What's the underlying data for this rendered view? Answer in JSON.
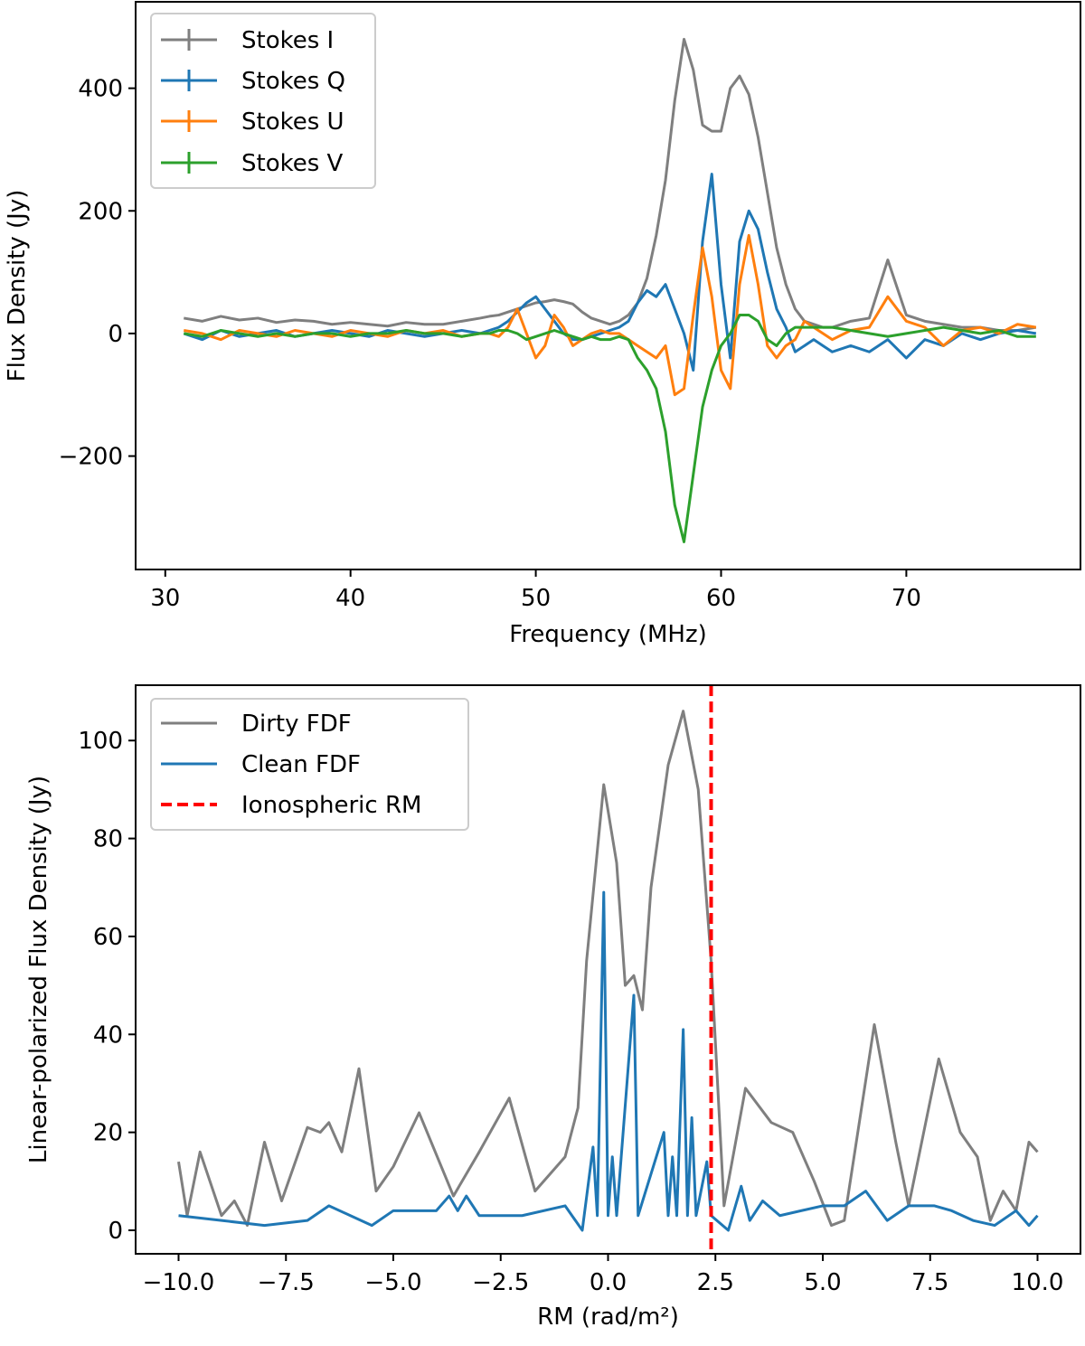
{
  "chart_data": [
    {
      "type": "line",
      "xlabel": "Frequency (MHz)",
      "ylabel": "Flux Density (Jy)",
      "xlim": [
        28.4,
        79.4
      ],
      "ylim": [
        -385,
        541
      ],
      "xticks": [
        30,
        40,
        50,
        60,
        70
      ],
      "yticks": [
        {
          "value": -200,
          "label": "−200"
        },
        0,
        200,
        400
      ],
      "legend": "upper left",
      "x": [
        31,
        32,
        33,
        34,
        35,
        36,
        37,
        38,
        39,
        40,
        41,
        42,
        43,
        44,
        45,
        46,
        47,
        47.5,
        48,
        48.5,
        49,
        49.5,
        50,
        50.5,
        51,
        51.5,
        52,
        52.5,
        53,
        53.5,
        54,
        54.5,
        55,
        55.5,
        56,
        56.5,
        57,
        57.5,
        58,
        58.5,
        59,
        59.5,
        60,
        60.5,
        61,
        61.5,
        62,
        62.5,
        63,
        63.5,
        64,
        64.5,
        65,
        65.5,
        66,
        67,
        68,
        69,
        70,
        71,
        72,
        73,
        74,
        75,
        76,
        77
      ],
      "series": [
        {
          "name": "Stokes I",
          "color": "#7f7f7f",
          "values": [
            25,
            20,
            28,
            22,
            25,
            18,
            22,
            20,
            15,
            18,
            15,
            12,
            18,
            15,
            15,
            20,
            25,
            28,
            30,
            35,
            40,
            45,
            50,
            52,
            55,
            52,
            48,
            35,
            25,
            20,
            15,
            20,
            30,
            50,
            90,
            160,
            250,
            380,
            480,
            430,
            340,
            330,
            330,
            400,
            420,
            390,
            320,
            230,
            140,
            80,
            40,
            20,
            15,
            10,
            10,
            20,
            25,
            120,
            30,
            20,
            15,
            10,
            10,
            5,
            5,
            10
          ]
        },
        {
          "name": "Stokes Q",
          "color": "#1f77b4",
          "values": [
            0,
            -10,
            5,
            -5,
            0,
            5,
            -5,
            0,
            5,
            0,
            -5,
            5,
            0,
            -5,
            0,
            5,
            0,
            5,
            10,
            20,
            35,
            50,
            60,
            40,
            20,
            0,
            -10,
            -10,
            -5,
            0,
            5,
            10,
            20,
            50,
            70,
            60,
            80,
            40,
            0,
            -60,
            150,
            260,
            80,
            -40,
            150,
            200,
            170,
            100,
            40,
            10,
            -30,
            -20,
            -10,
            -20,
            -30,
            -20,
            -30,
            -10,
            -40,
            -10,
            -20,
            0,
            -10,
            0,
            5,
            0
          ]
        },
        {
          "name": "Stokes U",
          "color": "#ff7f0e",
          "values": [
            5,
            0,
            -10,
            5,
            0,
            -5,
            5,
            0,
            -5,
            5,
            0,
            -5,
            5,
            0,
            5,
            -5,
            0,
            0,
            -5,
            10,
            40,
            0,
            -40,
            -20,
            30,
            10,
            -20,
            -10,
            0,
            5,
            0,
            0,
            -10,
            -20,
            -30,
            -40,
            -20,
            -100,
            -90,
            30,
            140,
            60,
            -60,
            -90,
            80,
            160,
            80,
            -20,
            -40,
            -20,
            -10,
            20,
            10,
            0,
            -10,
            5,
            10,
            60,
            20,
            10,
            -20,
            5,
            10,
            0,
            15,
            10
          ]
        },
        {
          "name": "Stokes V",
          "color": "#2ca02c",
          "values": [
            0,
            -5,
            5,
            0,
            -5,
            0,
            -5,
            0,
            0,
            -5,
            0,
            0,
            5,
            0,
            0,
            -5,
            0,
            0,
            5,
            5,
            0,
            -10,
            -5,
            0,
            5,
            0,
            -5,
            -10,
            -5,
            -10,
            -10,
            -5,
            -10,
            -40,
            -60,
            -90,
            -160,
            -280,
            -340,
            -230,
            -120,
            -60,
            -20,
            0,
            30,
            30,
            20,
            -10,
            -20,
            0,
            10,
            10,
            10,
            10,
            10,
            5,
            0,
            -5,
            0,
            5,
            10,
            5,
            0,
            5,
            -5,
            -5
          ]
        }
      ]
    },
    {
      "type": "line",
      "xlabel": "RM (rad/m²)",
      "ylabel": "Linear-polarized Flux Density (Jy)",
      "xlim": [
        -11,
        11
      ],
      "ylim": [
        -4.8,
        111.3
      ],
      "xticks": [
        {
          "value": -10,
          "label": "−10.0"
        },
        {
          "value": -7.5,
          "label": "−7.5"
        },
        {
          "value": -5,
          "label": "−5.0"
        },
        {
          "value": -2.5,
          "label": "−2.5"
        },
        {
          "value": 0,
          "label": "0.0"
        },
        {
          "value": 2.5,
          "label": "2.5"
        },
        {
          "value": 5,
          "label": "5.0"
        },
        {
          "value": 7.5,
          "label": "7.5"
        },
        {
          "value": 10,
          "label": "10.0"
        }
      ],
      "yticks": [
        0,
        20,
        40,
        60,
        80,
        100
      ],
      "legend": "upper left",
      "series": [
        {
          "name": "Dirty FDF",
          "color": "#7f7f7f",
          "x": [
            -10,
            -9.8,
            -9.5,
            -9,
            -8.7,
            -8.4,
            -8,
            -7.6,
            -7,
            -6.7,
            -6.5,
            -6.2,
            -5.8,
            -5.4,
            -5,
            -4.4,
            -3.6,
            -3,
            -2.3,
            -1.7,
            -1,
            -0.7,
            -0.5,
            -0.1,
            0.2,
            0.4,
            0.6,
            0.8,
            1,
            1.4,
            1.75,
            2.1,
            2.4,
            2.7,
            3.2,
            3.8,
            4.3,
            4.8,
            5.2,
            5.5,
            6.2,
            6.7,
            7,
            7.7,
            8.2,
            8.6,
            8.9,
            9.2,
            9.5,
            9.8,
            10
          ],
          "values": [
            14,
            3,
            16,
            3,
            6,
            1,
            18,
            6,
            21,
            20,
            22,
            16,
            33,
            8,
            13,
            24,
            7,
            16,
            27,
            8,
            15,
            25,
            55,
            91,
            75,
            50,
            52,
            45,
            70,
            95,
            106,
            90,
            55,
            5,
            29,
            22,
            20,
            10,
            1,
            2,
            42,
            18,
            5,
            35,
            20,
            15,
            2,
            8,
            4,
            18,
            16
          ]
        },
        {
          "name": "Clean FDF",
          "color": "#1f77b4",
          "x": [
            -10,
            -9,
            -8,
            -7,
            -6.5,
            -6,
            -5.5,
            -5,
            -4,
            -3.7,
            -3.5,
            -3.3,
            -3,
            -2,
            -1,
            -0.6,
            -0.35,
            -0.25,
            -0.1,
            0,
            0.1,
            0.2,
            0.6,
            0.7,
            1.3,
            1.4,
            1.5,
            1.6,
            1.75,
            1.85,
            1.95,
            2.05,
            2.3,
            2.4,
            2.8,
            3.1,
            3.3,
            3.6,
            4,
            5,
            5.5,
            6,
            6.5,
            7,
            7.6,
            8,
            8.5,
            9,
            9.5,
            9.8,
            10
          ],
          "values": [
            3,
            2,
            1,
            2,
            5,
            3,
            1,
            4,
            4,
            7,
            4,
            7,
            3,
            3,
            5,
            0,
            17,
            3,
            69,
            3,
            15,
            3,
            48,
            3,
            20,
            3,
            15,
            3,
            41,
            3,
            23,
            3,
            14,
            3,
            0,
            9,
            2,
            6,
            3,
            5,
            5,
            8,
            2,
            5,
            5,
            4,
            2,
            1,
            4,
            1,
            3
          ]
        }
      ],
      "vline": {
        "name": "Ionospheric RM",
        "x": 2.4,
        "color": "red"
      }
    }
  ]
}
